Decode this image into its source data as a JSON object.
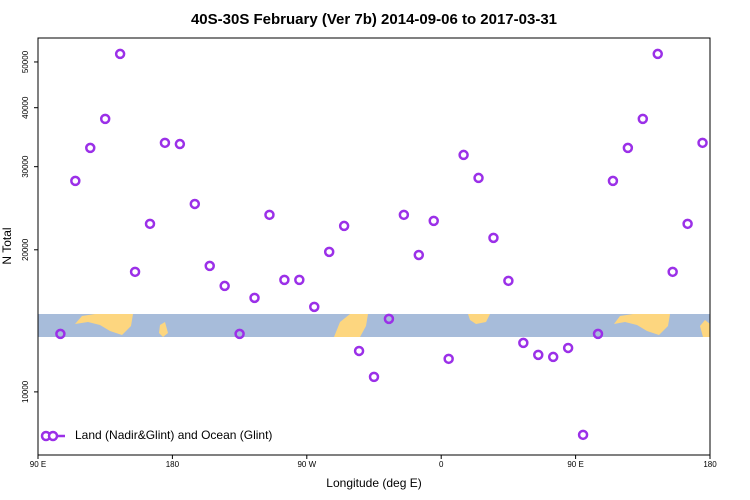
{
  "chart_data": {
    "type": "scatter",
    "title": "40S-30S February (Ver 7b)   2014-09-06 to 2017-03-31",
    "x_label": "Longitude (deg E)",
    "y_label": "N Total",
    "log_y": true,
    "xlim": [
      90,
      540
    ],
    "ylim": [
      7350,
      56200
    ],
    "xticks": [
      {
        "value": 90,
        "label": "90 E"
      },
      {
        "value": 180,
        "label": "180"
      },
      {
        "value": 270,
        "label": "90 W"
      },
      {
        "value": 360,
        "label": "0"
      },
      {
        "value": 450,
        "label": "90 E"
      },
      {
        "value": 540,
        "label": "180"
      }
    ],
    "yticks": [
      10000,
      20000,
      30000,
      40000,
      50000
    ],
    "legend_position": "bottom-left",
    "series": [
      {
        "name": "Land (Nadir&Glint) and Ocean (Glint)",
        "color": "#9b30e8",
        "x": [
          105,
          115,
          125,
          135,
          145,
          155,
          165,
          175,
          185,
          195,
          205,
          215,
          225,
          235,
          245,
          255,
          265,
          275,
          285,
          295,
          305,
          315,
          325,
          335,
          345,
          355,
          365,
          375,
          385,
          395,
          405,
          415,
          425,
          435,
          445,
          455,
          465,
          475,
          485,
          495,
          505,
          515,
          525,
          535
        ],
        "values": [
          13270,
          27990,
          32880,
          37880,
          52000,
          17960,
          22700,
          33700,
          33500,
          25010,
          18490,
          16770,
          13270,
          15820,
          23720,
          17270,
          17270,
          15140,
          19800,
          22470,
          12210,
          10760,
          14280,
          23720,
          19500,
          23030,
          11750,
          31770,
          28400,
          21200,
          17190,
          12700,
          11980,
          11860,
          12390,
          8110,
          13270,
          27990,
          32880,
          37880,
          52000,
          17960,
          22700,
          33700
        ]
      }
    ]
  }
}
